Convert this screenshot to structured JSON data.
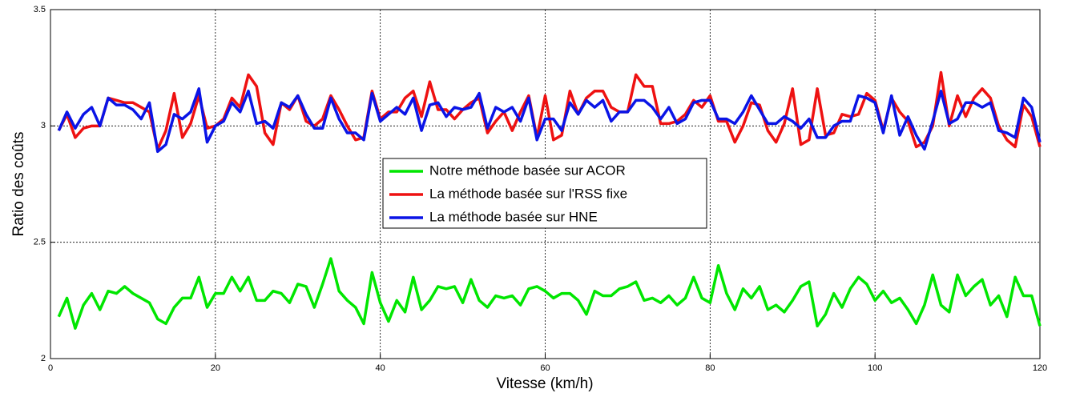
{
  "chart_data": {
    "type": "line",
    "xlabel": "Vitesse (km/h)",
    "ylabel": "Ratio des coûts",
    "x": [
      1,
      2,
      3,
      4,
      5,
      6,
      7,
      8,
      9,
      10,
      11,
      12,
      13,
      14,
      15,
      16,
      17,
      18,
      19,
      20,
      21,
      22,
      23,
      24,
      25,
      26,
      27,
      28,
      29,
      30,
      31,
      32,
      33,
      34,
      35,
      36,
      37,
      38,
      39,
      40,
      41,
      42,
      43,
      44,
      45,
      46,
      47,
      48,
      49,
      50,
      51,
      52,
      53,
      54,
      55,
      56,
      57,
      58,
      59,
      60,
      61,
      62,
      63,
      64,
      65,
      66,
      67,
      68,
      69,
      70,
      71,
      72,
      73,
      74,
      75,
      76,
      77,
      78,
      79,
      80,
      81,
      82,
      83,
      84,
      85,
      86,
      87,
      88,
      89,
      90,
      91,
      92,
      93,
      94,
      95,
      96,
      97,
      98,
      99,
      100,
      101,
      102,
      103,
      104,
      105,
      106,
      107,
      108,
      109,
      110,
      111,
      112,
      113,
      114,
      115,
      116,
      117,
      118,
      119,
      120
    ],
    "series": [
      {
        "name": "Notre méthode basée sur ACOR",
        "color": "#00e600",
        "values": [
          2.18,
          2.26,
          2.13,
          2.23,
          2.28,
          2.21,
          2.29,
          2.28,
          2.31,
          2.28,
          2.26,
          2.24,
          2.17,
          2.15,
          2.22,
          2.26,
          2.26,
          2.35,
          2.22,
          2.28,
          2.28,
          2.35,
          2.29,
          2.35,
          2.25,
          2.25,
          2.29,
          2.28,
          2.24,
          2.32,
          2.31,
          2.22,
          2.32,
          2.43,
          2.29,
          2.25,
          2.22,
          2.15,
          2.37,
          2.24,
          2.16,
          2.25,
          2.2,
          2.35,
          2.21,
          2.25,
          2.31,
          2.3,
          2.31,
          2.24,
          2.34,
          2.25,
          2.22,
          2.27,
          2.26,
          2.27,
          2.23,
          2.3,
          2.31,
          2.29,
          2.26,
          2.28,
          2.28,
          2.25,
          2.19,
          2.29,
          2.27,
          2.27,
          2.3,
          2.31,
          2.33,
          2.25,
          2.26,
          2.24,
          2.27,
          2.23,
          2.26,
          2.35,
          2.26,
          2.24,
          2.4,
          2.28,
          2.21,
          2.3,
          2.26,
          2.31,
          2.21,
          2.23,
          2.2,
          2.25,
          2.31,
          2.33,
          2.14,
          2.19,
          2.28,
          2.22,
          2.3,
          2.35,
          2.32,
          2.25,
          2.29,
          2.24,
          2.26,
          2.21,
          2.15,
          2.23,
          2.36,
          2.23,
          2.2,
          2.36,
          2.27,
          2.31,
          2.34,
          2.23,
          2.27,
          2.18,
          2.35,
          2.27,
          2.27,
          2.14
        ]
      },
      {
        "name": "La méthode basée sur l'RSS fixe",
        "color": "#ee1111",
        "values": [
          2.98,
          3.05,
          2.95,
          2.99,
          3.0,
          3.0,
          3.12,
          3.11,
          3.1,
          3.1,
          3.08,
          3.06,
          2.9,
          2.98,
          3.14,
          2.95,
          3.01,
          3.13,
          2.99,
          3.0,
          3.03,
          3.12,
          3.08,
          3.22,
          3.17,
          2.97,
          2.92,
          3.1,
          3.07,
          3.13,
          3.02,
          3.0,
          3.03,
          3.13,
          3.07,
          3.0,
          2.94,
          2.95,
          3.15,
          3.03,
          3.06,
          3.06,
          3.12,
          3.15,
          3.04,
          3.19,
          3.07,
          3.07,
          3.03,
          3.07,
          3.1,
          3.12,
          2.97,
          3.02,
          3.06,
          2.98,
          3.06,
          3.13,
          2.95,
          3.13,
          2.94,
          2.96,
          3.15,
          3.05,
          3.12,
          3.15,
          3.15,
          3.08,
          3.06,
          3.06,
          3.22,
          3.17,
          3.17,
          3.01,
          3.01,
          3.02,
          3.05,
          3.11,
          3.08,
          3.13,
          3.02,
          3.02,
          2.93,
          3.0,
          3.1,
          3.09,
          2.98,
          2.93,
          3.01,
          3.16,
          2.92,
          2.94,
          3.16,
          2.96,
          2.97,
          3.05,
          3.04,
          3.05,
          3.14,
          3.11,
          2.98,
          3.12,
          3.06,
          3.02,
          2.91,
          2.93,
          3.0,
          3.23,
          3.0,
          3.13,
          3.04,
          3.12,
          3.16,
          3.12,
          3.0,
          2.94,
          2.91,
          3.09,
          3.04,
          2.91
        ]
      },
      {
        "name": "La méthode basée sur HNE",
        "color": "#0a14e6",
        "values": [
          2.98,
          3.06,
          2.99,
          3.05,
          3.08,
          3.0,
          3.12,
          3.09,
          3.09,
          3.07,
          3.03,
          3.1,
          2.89,
          2.92,
          3.05,
          3.03,
          3.06,
          3.16,
          2.93,
          3.0,
          3.02,
          3.1,
          3.06,
          3.15,
          3.01,
          3.02,
          2.99,
          3.1,
          3.08,
          3.13,
          3.05,
          2.99,
          2.99,
          3.12,
          3.03,
          2.97,
          2.97,
          2.94,
          3.14,
          3.02,
          3.05,
          3.08,
          3.05,
          3.12,
          2.98,
          3.09,
          3.1,
          3.04,
          3.08,
          3.07,
          3.08,
          3.14,
          2.99,
          3.08,
          3.06,
          3.08,
          3.02,
          3.12,
          2.94,
          3.03,
          3.03,
          2.98,
          3.1,
          3.05,
          3.11,
          3.08,
          3.11,
          3.02,
          3.06,
          3.06,
          3.11,
          3.11,
          3.08,
          3.03,
          3.08,
          3.01,
          3.03,
          3.1,
          3.11,
          3.11,
          3.03,
          3.03,
          3.01,
          3.06,
          3.13,
          3.07,
          3.01,
          3.01,
          3.04,
          3.02,
          2.99,
          3.03,
          2.95,
          2.95,
          3.0,
          3.02,
          3.02,
          3.13,
          3.12,
          3.1,
          2.97,
          3.13,
          2.96,
          3.04,
          2.96,
          2.9,
          3.02,
          3.15,
          3.01,
          3.03,
          3.1,
          3.1,
          3.08,
          3.1,
          2.98,
          2.97,
          2.95,
          3.12,
          3.08,
          2.93
        ]
      }
    ],
    "xlim": [
      0,
      120
    ],
    "xticks": [
      0,
      20,
      40,
      60,
      80,
      100,
      120
    ],
    "ylim": [
      2,
      3.5
    ],
    "yticks": [
      2,
      2.5,
      3,
      3.5
    ],
    "grid": true,
    "legend": "center"
  }
}
